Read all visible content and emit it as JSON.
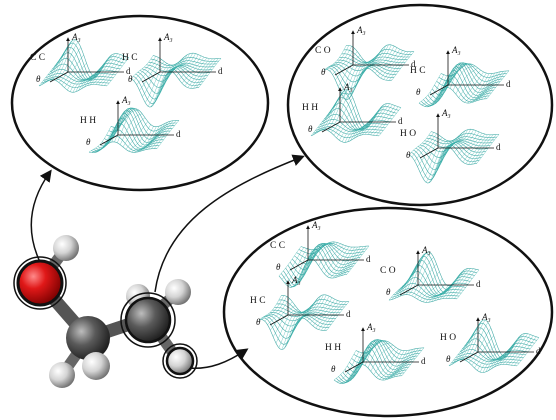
{
  "groups": [
    {
      "plots": [
        {
          "pair": "C C",
          "z_axis": "A₃",
          "y_axis": "θ",
          "x_axis": "d"
        },
        {
          "pair": "H C",
          "z_axis": "A₃",
          "y_axis": "θ",
          "x_axis": "d"
        },
        {
          "pair": "H H",
          "z_axis": "A₃",
          "y_axis": "θ",
          "x_axis": "d"
        }
      ]
    },
    {
      "plots": [
        {
          "pair": "C O",
          "z_axis": "A₃",
          "y_axis": "θ",
          "x_axis": "d"
        },
        {
          "pair": "H C",
          "z_axis": "A₃",
          "y_axis": "θ",
          "x_axis": "d"
        },
        {
          "pair": "H H",
          "z_axis": "A₃",
          "y_axis": "θ",
          "x_axis": "d"
        },
        {
          "pair": "H O",
          "z_axis": "A₃",
          "y_axis": "θ",
          "x_axis": "d"
        }
      ]
    },
    {
      "plots": [
        {
          "pair": "C C",
          "z_axis": "A₃",
          "y_axis": "θ",
          "x_axis": "d"
        },
        {
          "pair": "C O",
          "z_axis": "A₃",
          "y_axis": "θ",
          "x_axis": "d"
        },
        {
          "pair": "H C",
          "z_axis": "A₃",
          "y_axis": "θ",
          "x_axis": "d"
        },
        {
          "pair": "H H",
          "z_axis": "A₃",
          "y_axis": "θ",
          "x_axis": "d"
        },
        {
          "pair": "H O",
          "z_axis": "A₃",
          "y_axis": "θ",
          "x_axis": "d"
        }
      ]
    }
  ]
}
